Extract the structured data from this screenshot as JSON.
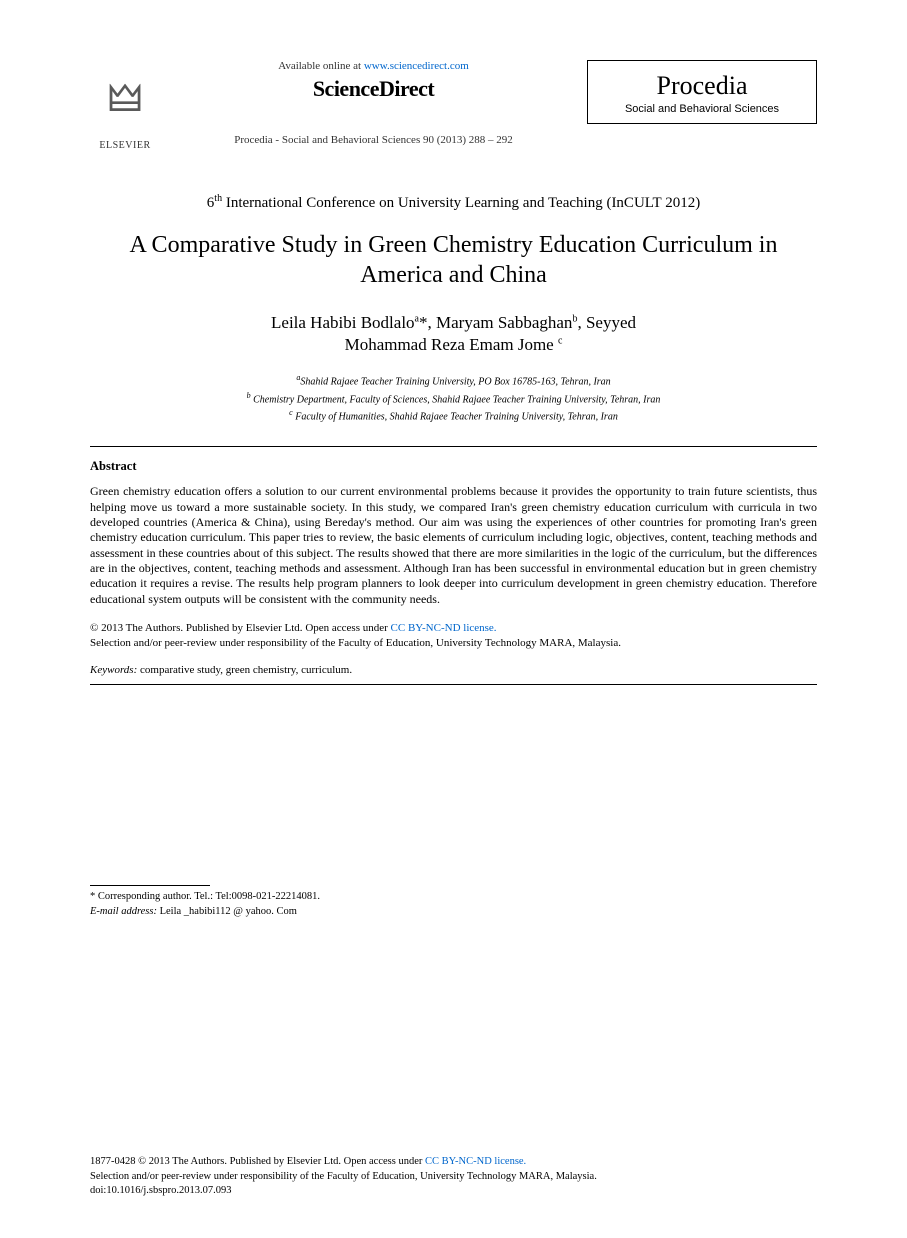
{
  "header": {
    "elsevier_label": "ELSEVIER",
    "available_text": "Available online at ",
    "available_url": "www.sciencedirect.com",
    "sciencedirect": "ScienceDirect",
    "journal_ref": "Procedia - Social and Behavioral Sciences 90 (2013) 288 – 292",
    "procedia_title": "Procedia",
    "procedia_sub": "Social and Behavioral Sciences"
  },
  "conference": {
    "ordinal": "6",
    "ordinal_suffix": "th",
    "name": " International Conference on University Learning and Teaching (InCULT 2012)"
  },
  "title": "A Comparative Study in Green Chemistry Education Curriculum in America and China",
  "authors": {
    "a1_name": "Leila Habibi Bodlalo",
    "a1_mark": "a",
    "a1_ast": "*",
    "sep1": ", ",
    "a2_name": "Maryam Sabbaghan",
    "a2_mark": "b",
    "sep2": ", ",
    "a3_first": "Seyyed",
    "a3_rest": "Mohammad Reza Emam Jome ",
    "a3_mark": "c"
  },
  "affiliations": {
    "a_mark": "a",
    "a_text": "Shahid Rajaee Teacher Training University, PO Box 16785-163, Tehran, Iran",
    "b_mark": "b",
    "b_text": " Chemistry Department, Faculty of Sciences, Shahid Rajaee Teacher Training University, Tehran, Iran",
    "c_mark": "c",
    "c_text": " Faculty of Humanities, Shahid Rajaee Teacher Training University, Tehran, Iran"
  },
  "abstract": {
    "heading": "Abstract",
    "body": "Green chemistry education offers a solution to our current environmental problems because it provides the opportunity to train future scientists, thus helping move us toward a more sustainable society. In this study, we compared Iran's green chemistry education curriculum with curricula in two developed countries (America & China), using Bereday's method. Our aim was using the experiences of other countries for promoting Iran's green chemistry education curriculum. This paper tries to review, the basic elements of curriculum including logic, objectives, content, teaching methods and assessment in these countries about of this subject. The results showed that there are more similarities in the logic of the curriculum, but the differences are in the objectives, content, teaching methods and assessment. Although Iran has been successful in environmental education but in green chemistry education it requires a revise. The results help program planners to look deeper into curriculum development in green chemistry education. Therefore educational system outputs will be consistent with the community needs."
  },
  "copyright": {
    "line1a": "© 2013 The Authors. Published by Elsevier Ltd. ",
    "line1b": "Open access under ",
    "line1_link": "CC BY-NC-ND license.",
    "line2": "Selection and/or peer-review under responsibility of the Faculty of Education, University Technology MARA, Malaysia."
  },
  "keywords": {
    "label": "Keywords:",
    "text": " comparative study, green chemistry, curriculum."
  },
  "corresponding": {
    "line1": "* Corresponding author. Tel.: Tel:0098-021-22214081.",
    "email_label": "E-mail address:",
    "email_value": " Leila _habibi112 @ yahoo. Com"
  },
  "footer": {
    "line1a": "1877-0428 © 2013 The Authors. Published by Elsevier Ltd. ",
    "line1b": "Open access under ",
    "line1_link": "CC BY-NC-ND license.",
    "line2": "Selection and/or peer-review under responsibility of the Faculty of Education, University Technology MARA, Malaysia.",
    "line3": "doi:10.1016/j.sbspro.2013.07.093"
  },
  "colors": {
    "text": "#000000",
    "link": "#0066cc",
    "background": "#ffffff"
  },
  "fonts": {
    "body_family": "Times New Roman",
    "title_size_pt": 24,
    "author_size_pt": 17,
    "abstract_size_pt": 12,
    "footer_size_pt": 10.5
  }
}
